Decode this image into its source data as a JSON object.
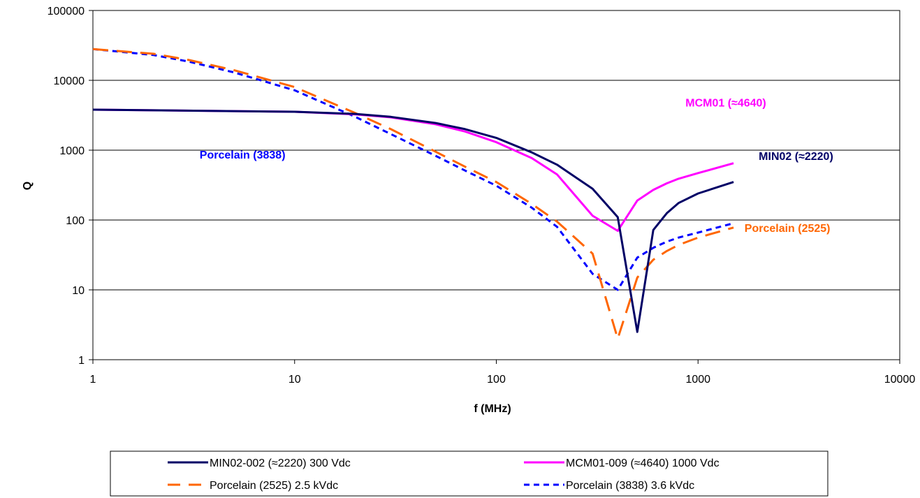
{
  "chart_data": {
    "type": "line",
    "title": "",
    "xlabel": "f (MHz)",
    "ylabel": "Q",
    "x_scale": "log",
    "y_scale": "log",
    "xlim": [
      1,
      10000
    ],
    "ylim": [
      1,
      100000
    ],
    "x_ticks": [
      "1",
      "10",
      "100",
      "1000",
      "10000"
    ],
    "y_ticks": [
      "1",
      "10",
      "100",
      "1000",
      "10000",
      "100000"
    ],
    "grid": "horizontal major gridlines",
    "legend_position": "bottom",
    "series": [
      {
        "name": "MIN02-002 (≈2220) 300 Vdc",
        "color": "#000066",
        "dash": "solid",
        "x": [
          1,
          10,
          20,
          30,
          50,
          70,
          100,
          150,
          200,
          300,
          400,
          500,
          600,
          700,
          800,
          1000,
          1500
        ],
        "y": [
          3800,
          3550,
          3300,
          3000,
          2450,
          2000,
          1500,
          930,
          620,
          280,
          110,
          2.5,
          72,
          125,
          175,
          240,
          350
        ]
      },
      {
        "name": "MCM01-009 (≈4640) 1000 Vdc",
        "color": "#FF00FF",
        "dash": "solid",
        "x": [
          1,
          10,
          20,
          30,
          50,
          70,
          100,
          150,
          200,
          300,
          400,
          500,
          600,
          700,
          800,
          1000,
          1500
        ],
        "y": [
          3800,
          3550,
          3250,
          2950,
          2350,
          1850,
          1300,
          770,
          450,
          115,
          70,
          190,
          270,
          335,
          390,
          470,
          650
        ]
      },
      {
        "name": "Porcelain (2525) 2.5 kVdc",
        "color": "#FF6600",
        "dash": "long-dash",
        "x": [
          1,
          2,
          3,
          5,
          10,
          20,
          30,
          50,
          70,
          100,
          150,
          200,
          300,
          400,
          500,
          600,
          700,
          800,
          1000,
          1500
        ],
        "y": [
          28000,
          24000,
          19500,
          14000,
          8000,
          3400,
          2000,
          950,
          580,
          350,
          170,
          95,
          33,
          2,
          15,
          27,
          36,
          44,
          56,
          78
        ]
      },
      {
        "name": "Porcelain (3838) 3.6 kVdc",
        "color": "#0000FF",
        "dash": "short-dash",
        "x": [
          1,
          2,
          3,
          5,
          10,
          20,
          30,
          50,
          70,
          100,
          150,
          200,
          300,
          400,
          500,
          600,
          700,
          800,
          1000,
          1500
        ],
        "y": [
          28000,
          23000,
          18500,
          13000,
          7200,
          3000,
          1700,
          830,
          510,
          310,
          150,
          80,
          17,
          10,
          29,
          40,
          49,
          56,
          66,
          90
        ]
      }
    ],
    "annotations": [
      {
        "text": "MCM01 (≈4640)",
        "color": "#FF00FF",
        "x": 1000,
        "y": 4640
      },
      {
        "text": "MIN02 (≈2220)",
        "color": "#000066",
        "x": 2000,
        "y": 830
      },
      {
        "text": "Porcelain (3838)",
        "color": "#0000FF",
        "x": 9,
        "y": 830
      },
      {
        "text": "Porcelain (2525)",
        "color": "#FF6600",
        "x": 1700,
        "y": 78
      }
    ]
  }
}
